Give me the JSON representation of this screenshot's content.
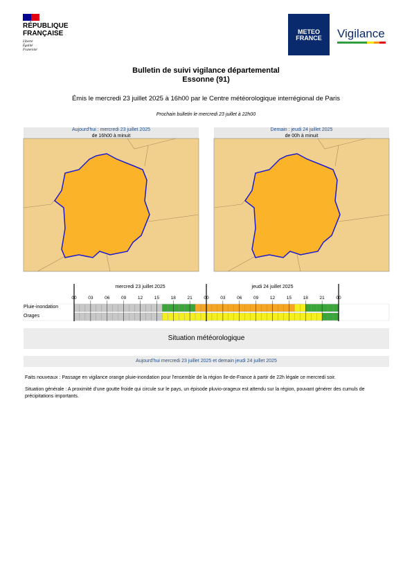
{
  "header": {
    "republique": [
      "RÉPUBLIQUE",
      "FRANÇAISE"
    ],
    "motto": [
      "Liberté",
      "Égalité",
      "Fraternité"
    ],
    "meteo": [
      "METEO",
      "FRANCE"
    ],
    "vigilance": "Vigilance"
  },
  "bulletin": {
    "title": "Bulletin de suivi vigilance départemental",
    "subtitle": "Essonne (91)",
    "issued": "Émis le mercredi 23 juillet 2025 à 16h00 par le Centre météorologique interrégional de Paris",
    "next": "Prochain bulletin le mercredi 23 juillet à 22h00"
  },
  "maps": [
    {
      "label": "Aujourd'hui : mercredi 23 juillet 2025",
      "period": "de 16h00 à minuit"
    },
    {
      "label": "Demain : jeudi 24 juillet 2025",
      "period": "de 00h à minuit"
    }
  ],
  "timeline": {
    "days": [
      "mercredi 23 juillet 2025",
      "jeudi 24 juillet 2025"
    ],
    "hours": [
      "00",
      "03",
      "06",
      "09",
      "12",
      "15",
      "18",
      "21",
      "00",
      "03",
      "06",
      "09",
      "12",
      "15",
      "18",
      "21",
      "00"
    ],
    "rows": [
      "Pluie-inondation",
      "Orages"
    ]
  },
  "situation": {
    "title": "Situation météorologique",
    "period": "Aujourd'hui mercredi 23 juillet 2025 et demain jeudi 24 juillet 2025",
    "paragraphs": [
      {
        "label": "Faits nouveaux :",
        "text": "Passage en vigilance orange pluie-inondation pour l'ensemble de la région Ile-de-France à partir de 22h légale ce mercredi soir."
      },
      {
        "label": "Situation générale :",
        "text": "A proximité d'une goutte froide qui circule sur le pays, un épisode pluvio-orageux est attendu sur la région, pouvant générer des cumuls de précipitations importants."
      }
    ]
  }
}
